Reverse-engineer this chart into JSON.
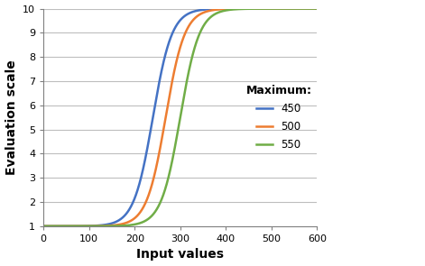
{
  "title": "",
  "xlabel": "Input values",
  "ylabel": "Evaluation scale",
  "xlim": [
    0,
    600
  ],
  "ylim": [
    1,
    10
  ],
  "xticks": [
    0,
    100,
    200,
    300,
    400,
    500,
    600
  ],
  "yticks": [
    1,
    2,
    3,
    4,
    5,
    6,
    7,
    8,
    9,
    10
  ],
  "series": [
    {
      "label": "450",
      "maximum": 450,
      "midpoint": 240,
      "k": 0.048,
      "color": "#4472C4"
    },
    {
      "label": "500",
      "maximum": 500,
      "midpoint": 268,
      "k": 0.048,
      "color": "#ED7D31"
    },
    {
      "label": "550",
      "maximum": 550,
      "midpoint": 300,
      "k": 0.048,
      "color": "#70AD47"
    }
  ],
  "legend_title": "Maximum:",
  "y_min": 1,
  "y_max": 10,
  "background_color": "#FFFFFF",
  "grid_color": "#BEBEBE",
  "linewidth": 1.8
}
